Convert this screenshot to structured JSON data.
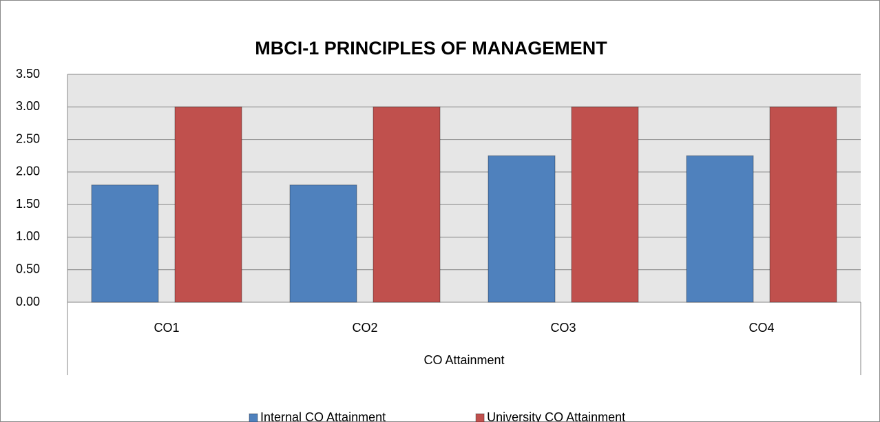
{
  "chart_data": {
    "type": "bar",
    "title": "MBCI-1 PRINCIPLES OF MANAGEMENT",
    "x_label": "CO Attainment",
    "categories": [
      "CO1",
      "CO2",
      "CO3",
      "CO4"
    ],
    "series": [
      {
        "name": "Internal CO Attainment",
        "color": "#4f81bd",
        "values": [
          1.8,
          1.8,
          2.25,
          2.25
        ]
      },
      {
        "name": "University CO Attainment",
        "color": "#c0504d",
        "values": [
          3,
          3,
          3,
          3
        ]
      }
    ],
    "ylim": [
      0,
      3.5
    ],
    "yticks": [
      {
        "value": 0,
        "label": "0.00"
      },
      {
        "value": 0.5,
        "label": "0.50"
      },
      {
        "value": 1,
        "label": "1.00"
      },
      {
        "value": 1.5,
        "label": "1.50"
      },
      {
        "value": 2,
        "label": "2.00"
      },
      {
        "value": 2.5,
        "label": "2.50"
      },
      {
        "value": 3,
        "label": "3.00"
      },
      {
        "value": 3.5,
        "label": "3.50"
      }
    ],
    "grid": true,
    "legend": "bottom"
  }
}
